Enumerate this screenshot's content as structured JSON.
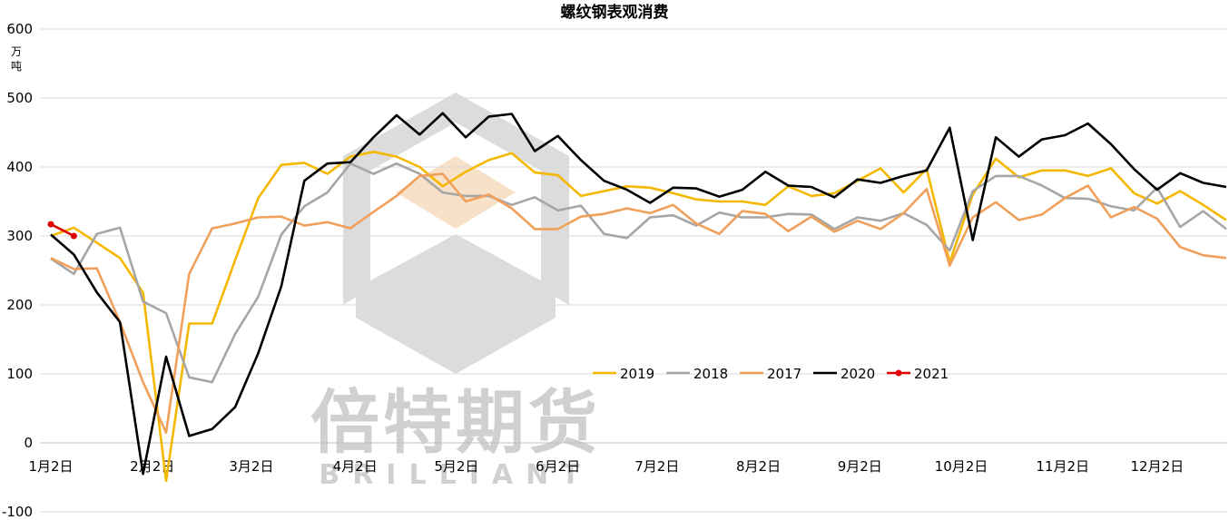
{
  "chart_data": {
    "type": "line",
    "title": "螺纹钢表观消费",
    "ylabel": "万吨",
    "ylim": [
      -100,
      600
    ],
    "yticks": [
      -100,
      0,
      100,
      200,
      300,
      400,
      500,
      600
    ],
    "xticks": [
      "1月2日",
      "2月2日",
      "3月2日",
      "4月2日",
      "5月2日",
      "6月2日",
      "7月2日",
      "8月2日",
      "9月2日",
      "10月2日",
      "11月2日",
      "12月2日"
    ],
    "grid": "horizontal",
    "legend": "center-right",
    "colors": {
      "2019": "#f5b800",
      "2018": "#a6a6a6",
      "2017": "#f0a05a",
      "2020": "#000000",
      "2021": "#e00000"
    },
    "series": [
      {
        "name": "2019",
        "values": [
          300,
          312,
          290,
          268,
          218,
          -55,
          173,
          173,
          265,
          355,
          403,
          406,
          390,
          415,
          422,
          415,
          400,
          372,
          393,
          410,
          420,
          392,
          388,
          358,
          365,
          372,
          370,
          362,
          353,
          350,
          350,
          345,
          372,
          358,
          362,
          380,
          398,
          363,
          397,
          262,
          360,
          412,
          385,
          395,
          395,
          387,
          398,
          362,
          347,
          365,
          345,
          323
        ]
      },
      {
        "name": "2018",
        "values": [
          267,
          245,
          303,
          312,
          205,
          188,
          95,
          88,
          158,
          212,
          302,
          343,
          363,
          405,
          390,
          405,
          390,
          363,
          358,
          358,
          345,
          356,
          337,
          344,
          303,
          297,
          327,
          330,
          315,
          334,
          327,
          327,
          332,
          331,
          310,
          327,
          322,
          333,
          316,
          279,
          365,
          387,
          387,
          373,
          355,
          354,
          343,
          337,
          370,
          313,
          336,
          310
        ]
      },
      {
        "name": "2017",
        "values": [
          268,
          252,
          253,
          175,
          88,
          15,
          245,
          311,
          318,
          327,
          328,
          315,
          320,
          311,
          335,
          358,
          387,
          390,
          350,
          360,
          340,
          310,
          310,
          328,
          332,
          340,
          333,
          345,
          318,
          303,
          336,
          332,
          307,
          328,
          306,
          322,
          310,
          333,
          368,
          257,
          327,
          349,
          323,
          331,
          355,
          373,
          327,
          342,
          325,
          284,
          272,
          268
        ]
      },
      {
        "name": "2020",
        "values": [
          302,
          273,
          218,
          175,
          -45,
          125,
          10,
          20,
          52,
          130,
          227,
          380,
          405,
          407,
          443,
          475,
          447,
          478,
          443,
          473,
          477,
          423,
          445,
          410,
          380,
          367,
          348,
          370,
          369,
          357,
          367,
          393,
          373,
          371,
          356,
          382,
          377,
          387,
          395,
          457,
          294,
          443,
          415,
          440,
          446,
          463,
          433,
          397,
          367,
          391,
          377,
          371
        ]
      },
      {
        "name": "2021",
        "values": [
          317,
          300
        ]
      }
    ]
  },
  "watermark": {
    "text": "倍特期货",
    "sub": "BRILLIANT"
  }
}
